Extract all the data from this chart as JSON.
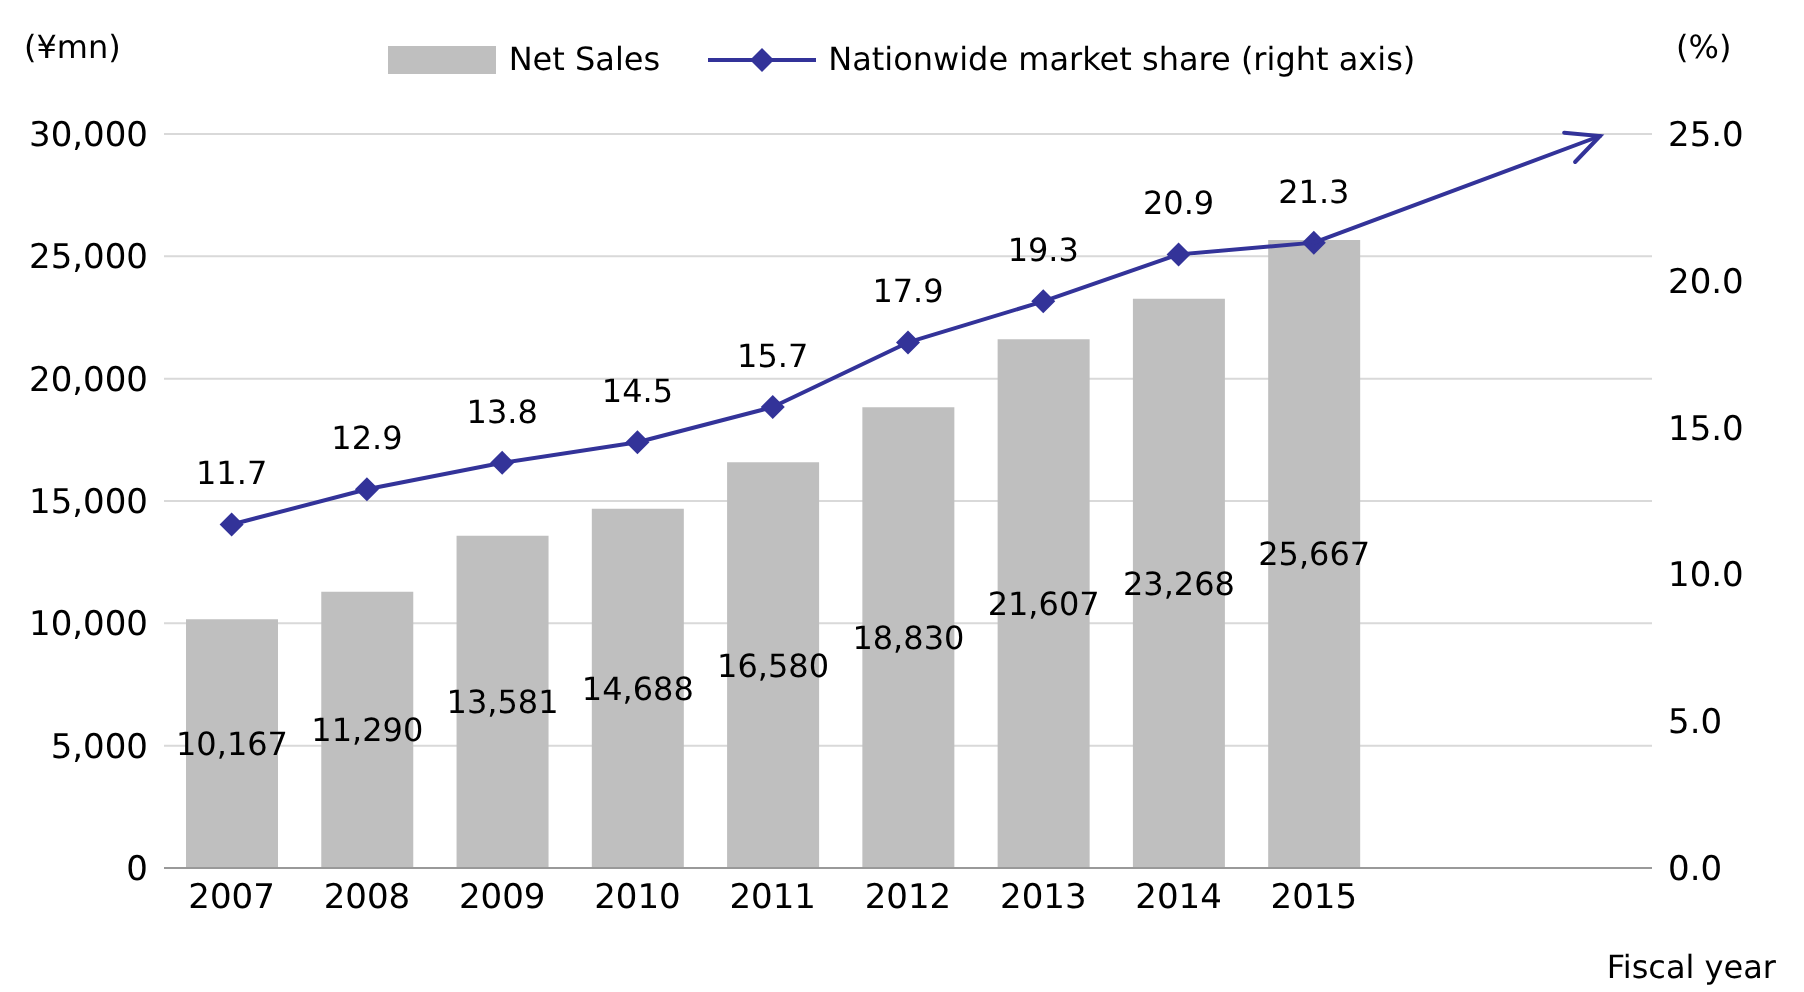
{
  "chart_data": {
    "type": "bar",
    "xlabel": "Fiscal year",
    "ylabel": "(¥mn)",
    "y2label": "(%)",
    "categories": [
      "2007",
      "2008",
      "2009",
      "2010",
      "2011",
      "2012",
      "2013",
      "2014",
      "2015",
      null,
      null
    ],
    "series": [
      {
        "name": "Net Sales",
        "color": "#bfbfbf",
        "values": [
          10167,
          11290,
          13581,
          14688,
          16580,
          18830,
          21607,
          23268,
          25667,
          null,
          null
        ],
        "value_labels": [
          "10,167",
          "11,290",
          "13,581",
          "14,688",
          "16,580",
          "18,830",
          "21,607",
          "23,268",
          "25,667",
          null,
          null
        ]
      },
      {
        "name": "Nationwide market share (right axis)",
        "type": "line",
        "axis": "y2",
        "color": "#333399",
        "marker": "diamond",
        "values": [
          11.7,
          12.9,
          13.8,
          14.5,
          15.7,
          17.9,
          19.3,
          20.9,
          21.3,
          null,
          null
        ]
      }
    ],
    "ylim": [
      0,
      30000
    ],
    "yticks": [
      0,
      {
        "value": 5000,
        "label": "5,000"
      },
      {
        "value": 10000,
        "label": "10,000"
      },
      {
        "value": 15000,
        "label": "15,000"
      },
      {
        "value": 20000,
        "label": "20,000"
      },
      {
        "value": 25000,
        "label": "25,000"
      },
      {
        "value": 30000,
        "label": "30,000"
      }
    ],
    "y2lim": [
      0,
      25
    ],
    "y2ticks": [
      {
        "value": 0,
        "label": "0.0"
      },
      {
        "value": 5,
        "label": "5.0"
      },
      {
        "value": 10,
        "label": "10.0"
      },
      {
        "value": 15,
        "label": "15.0"
      },
      {
        "value": 20,
        "label": "20.0"
      },
      {
        "value": 25,
        "label": "25.0"
      }
    ],
    "grid": "y",
    "legend": "top",
    "data_labels": true
  }
}
